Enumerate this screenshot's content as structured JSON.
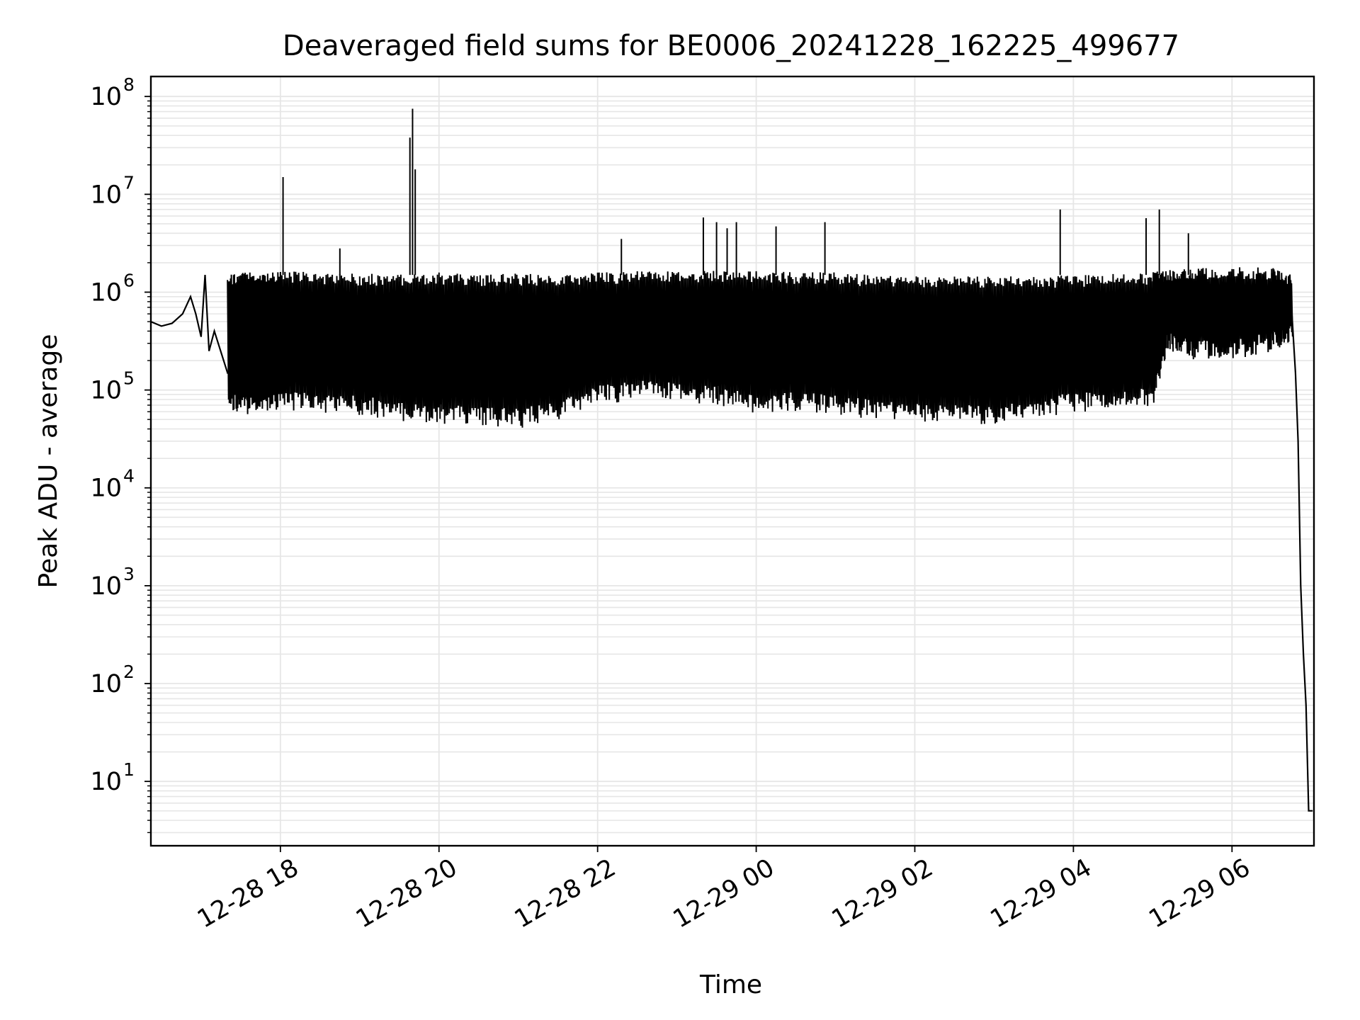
{
  "chart_data": {
    "type": "line",
    "title": "Deaveraged field sums for BE0006_20241228_162225_499677",
    "xlabel": "Time",
    "ylabel": "Peak ADU - average",
    "yscale": "log",
    "xlim": [
      "2024-12-28 16:22",
      "2024-12-29 07:02"
    ],
    "ylim": [
      2.2,
      160000000
    ],
    "grid": true,
    "line_color": "#000000",
    "grid_color": "#e6e6e6",
    "x_ticks": [
      {
        "label": "12-28 18",
        "time": "2024-12-28 18:00"
      },
      {
        "label": "12-28 20",
        "time": "2024-12-28 20:00"
      },
      {
        "label": "12-28 22",
        "time": "2024-12-28 22:00"
      },
      {
        "label": "12-29 00",
        "time": "2024-12-29 00:00"
      },
      {
        "label": "12-29 02",
        "time": "2024-12-29 02:00"
      },
      {
        "label": "12-29 04",
        "time": "2024-12-29 04:00"
      },
      {
        "label": "12-29 06",
        "time": "2024-12-29 06:00"
      }
    ],
    "y_ticks": [
      {
        "mantissa": "10",
        "exponent": "1",
        "value": 10
      },
      {
        "mantissa": "10",
        "exponent": "2",
        "value": 100
      },
      {
        "mantissa": "10",
        "exponent": "3",
        "value": 1000
      },
      {
        "mantissa": "10",
        "exponent": "4",
        "value": 10000
      },
      {
        "mantissa": "10",
        "exponent": "5",
        "value": 100000
      },
      {
        "mantissa": "10",
        "exponent": "6",
        "value": 1000000
      },
      {
        "mantissa": "10",
        "exponent": "7",
        "value": 10000000
      },
      {
        "mantissa": "10",
        "exponent": "8",
        "value": 100000000
      }
    ],
    "series": [
      {
        "x": [
          "2024-12-28 16:22",
          "2024-12-28 16:30",
          "2024-12-28 16:38",
          "2024-12-28 16:46",
          "2024-12-28 16:52",
          "2024-12-28 16:56",
          "2024-12-28 17:00",
          "2024-12-28 17:03",
          "2024-12-28 17:06",
          "2024-12-28 17:10",
          "2024-12-28 17:20",
          "2024-12-28 17:35",
          "2024-12-28 18:00",
          "2024-12-28 18:30",
          "2024-12-28 19:00",
          "2024-12-28 19:30",
          "2024-12-28 20:00",
          "2024-12-28 20:30",
          "2024-12-28 21:00",
          "2024-12-28 21:30",
          "2024-12-28 22:00",
          "2024-12-28 22:30",
          "2024-12-28 23:00",
          "2024-12-28 23:30",
          "2024-12-29 00:00",
          "2024-12-29 00:30",
          "2024-12-29 01:00",
          "2024-12-29 01:30",
          "2024-12-29 02:00",
          "2024-12-29 02:30",
          "2024-12-29 03:00",
          "2024-12-29 03:30",
          "2024-12-29 04:00",
          "2024-12-29 04:30",
          "2024-12-29 05:00",
          "2024-12-29 05:10",
          "2024-12-29 05:30",
          "2024-12-29 06:00",
          "2024-12-29 06:30",
          "2024-12-29 06:45",
          "2024-12-29 06:48",
          "2024-12-29 06:50",
          "2024-12-29 06:52",
          "2024-12-29 06:54",
          "2024-12-29 06:56",
          "2024-12-29 06:58",
          "2024-12-29 07:00",
          "2024-12-29 07:01"
        ],
        "y": [
          500000,
          450000,
          480000,
          600000,
          900000,
          600000,
          350000,
          1500000,
          250000,
          400000,
          150000,
          200000,
          200000,
          180000,
          220000,
          200000,
          180000,
          160000,
          170000,
          175000,
          200000,
          210000,
          240000,
          250000,
          230000,
          200000,
          190000,
          185000,
          180000,
          175000,
          170000,
          180000,
          200000,
          200000,
          210000,
          500000,
          550000,
          520000,
          600000,
          700000,
          150000,
          30000,
          1000,
          200,
          60,
          5,
          5,
          5
        ],
        "band_low": [
          null,
          null,
          null,
          null,
          null,
          null,
          null,
          null,
          null,
          null,
          60000,
          55000,
          60000,
          58000,
          55000,
          48000,
          45000,
          42000,
          40000,
          50000,
          70000,
          80000,
          75000,
          70000,
          55000,
          60000,
          55000,
          50000,
          45000,
          45000,
          42000,
          50000,
          60000,
          60000,
          70000,
          250000,
          200000,
          200000,
          250000,
          300000,
          null,
          null,
          null,
          null,
          null,
          null,
          null,
          null
        ],
        "band_high": [
          null,
          null,
          null,
          null,
          null,
          null,
          null,
          null,
          null,
          null,
          1500000,
          1650000,
          1650000,
          1600000,
          1550000,
          1550000,
          1600000,
          1500000,
          1550000,
          1500000,
          1600000,
          1650000,
          1650000,
          1700000,
          1650000,
          1600000,
          1600000,
          1500000,
          1450000,
          1450000,
          1450000,
          1450000,
          1500000,
          1550000,
          1600000,
          1700000,
          1750000,
          1800000,
          1800000,
          1500000,
          null,
          null,
          null,
          null,
          null,
          null,
          null,
          null
        ]
      }
    ],
    "spikes": [
      {
        "x": "2024-12-28 18:02",
        "y": 15000000
      },
      {
        "x": "2024-12-28 18:45",
        "y": 2800000
      },
      {
        "x": "2024-12-28 19:38",
        "y": 38000000
      },
      {
        "x": "2024-12-28 19:40",
        "y": 75000000
      },
      {
        "x": "2024-12-28 19:42",
        "y": 18000000
      },
      {
        "x": "2024-12-28 22:18",
        "y": 3500000
      },
      {
        "x": "2024-12-28 23:20",
        "y": 5800000
      },
      {
        "x": "2024-12-28 23:30",
        "y": 5200000
      },
      {
        "x": "2024-12-28 23:38",
        "y": 4500000
      },
      {
        "x": "2024-12-28 23:45",
        "y": 5200000
      },
      {
        "x": "2024-12-29 00:15",
        "y": 4700000
      },
      {
        "x": "2024-12-29 00:52",
        "y": 5200000
      },
      {
        "x": "2024-12-29 03:50",
        "y": 7000000
      },
      {
        "x": "2024-12-29 04:55",
        "y": 5700000
      },
      {
        "x": "2024-12-29 05:05",
        "y": 7000000
      },
      {
        "x": "2024-12-29 05:27",
        "y": 4000000
      }
    ]
  }
}
